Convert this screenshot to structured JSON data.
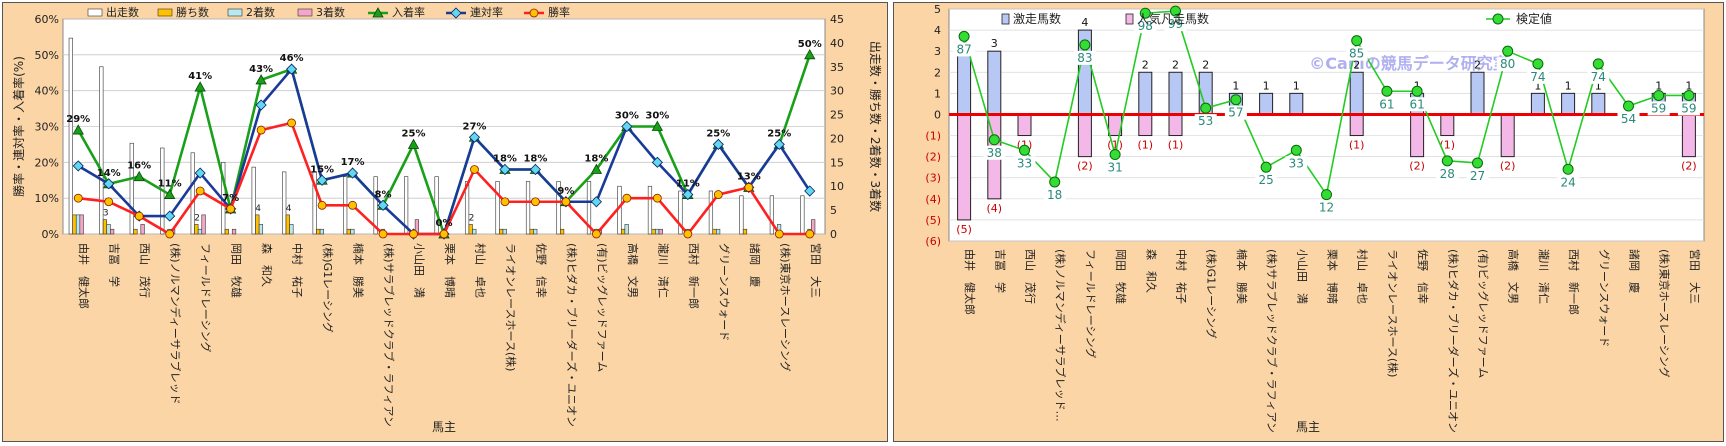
{
  "chart_data": [
    {
      "type": "bar",
      "xlabel": "馬主",
      "ylabel": "勝率・連対率・入着率(%)",
      "y2label": "出走数・勝ち数・2着数・3着数",
      "ylim": [
        0,
        60
      ],
      "yticks": [
        "0%",
        "10%",
        "20%",
        "30%",
        "40%",
        "50%",
        "60%"
      ],
      "y2lim": [
        0,
        45
      ],
      "y2ticks": [
        "0",
        "5",
        "10",
        "15",
        "20",
        "25",
        "30",
        "35",
        "40",
        "45"
      ],
      "legend_position": "top",
      "categories": [
        "由井　健太郎",
        "吉冨　学",
        "西山　茂行",
        "(株)ノルマンディーサラブレッド",
        "フィールドレーシング",
        "岡田　牧雄",
        "森　和久",
        "中村　祐子",
        "(株)G1レーシング",
        "楠本　勝美",
        "(株)サラブレッドクラブ・ラフィアン",
        "小山田　満",
        "栗本　博晴",
        "村山　卓也",
        "ライオンレースホース(株)",
        "佐野　信幸",
        "(株)ヒダカ・ブリーダーズ・ユニオン",
        "(有)ビッグレッドファーム",
        "高橋　文男",
        "瀧川　清仁",
        "西村　新一郎",
        "グリーンスウォード",
        "諸岡　慶",
        "(株)東京ホースレーシング",
        "宮田　大三"
      ],
      "bar_series": [
        {
          "name": "出走数",
          "color": "#ffffff",
          "values": [
            41,
            35,
            19,
            18,
            17,
            15,
            14,
            13,
            13,
            12,
            12,
            12,
            12,
            11,
            11,
            11,
            11,
            11,
            10,
            10,
            9,
            9,
            8,
            8,
            8
          ]
        },
        {
          "name": "勝ち数",
          "color": "#ffc000",
          "values": [
            4,
            3,
            1,
            0,
            2,
            1,
            4,
            4,
            1,
            1,
            0,
            0,
            0,
            2,
            1,
            1,
            1,
            0,
            1,
            1,
            0,
            1,
            1,
            0,
            0
          ]
        },
        {
          "name": "2着数",
          "color": "#b8e8f0",
          "values": [
            4,
            2,
            0,
            1,
            1,
            0,
            2,
            2,
            1,
            1,
            1,
            0,
            0,
            1,
            1,
            1,
            0,
            1,
            2,
            1,
            1,
            1,
            0,
            2,
            1
          ]
        },
        {
          "name": "3着数",
          "color": "#f4a6c8",
          "values": [
            4,
            1,
            2,
            1,
            4,
            1,
            0,
            0,
            0,
            0,
            0,
            3,
            0,
            0,
            0,
            0,
            0,
            1,
            0,
            1,
            0,
            0,
            0,
            0,
            3
          ]
        }
      ],
      "line_series": [
        {
          "name": "入着率",
          "color": "#18a018",
          "marker": "triangle",
          "values": [
            29,
            14,
            16,
            11,
            41,
            7,
            43,
            46,
            15,
            17,
            8,
            25,
            0,
            27,
            18,
            18,
            9,
            18,
            30,
            30,
            11,
            25,
            13,
            25,
            50
          ]
        },
        {
          "name": "連対率",
          "color": "#1a3a9a",
          "marker": "diamond",
          "values": [
            19,
            14,
            5,
            5,
            17,
            7,
            36,
            46,
            15,
            17,
            8,
            0,
            0,
            27,
            18,
            18,
            9,
            9,
            30,
            20,
            11,
            25,
            13,
            25,
            12
          ]
        },
        {
          "name": "勝率",
          "color": "#ff2020",
          "marker": "circle",
          "values": [
            10,
            9,
            5,
            0,
            12,
            7,
            29,
            31,
            8,
            8,
            0,
            0,
            0,
            18,
            9,
            9,
            9,
            0,
            10,
            10,
            0,
            11,
            13,
            0,
            0
          ]
        }
      ],
      "data_labels": [
        {
          "index": 0,
          "value": "29%"
        },
        {
          "index": 1,
          "value": "14%"
        },
        {
          "index": 2,
          "value": "16%"
        },
        {
          "index": 3,
          "value": "11%"
        },
        {
          "index": 4,
          "value": "41%"
        },
        {
          "index": 5,
          "value": "7%"
        },
        {
          "index": 6,
          "value": "43%"
        },
        {
          "index": 7,
          "value": "46%"
        },
        {
          "index": 8,
          "value": "15%"
        },
        {
          "index": 9,
          "value": "17%"
        },
        {
          "index": 10,
          "value": "8%"
        },
        {
          "index": 11,
          "value": "25%"
        },
        {
          "index": 12,
          "value": "0%"
        },
        {
          "index": 13,
          "value": "27%"
        },
        {
          "index": 14,
          "value": "18%"
        },
        {
          "index": 15,
          "value": "18%"
        },
        {
          "index": 16,
          "value": "9%"
        },
        {
          "index": 17,
          "value": "18%"
        },
        {
          "index": 18,
          "value": "30%"
        },
        {
          "index": 19,
          "value": "30%"
        },
        {
          "index": 20,
          "value": "11%"
        },
        {
          "index": 21,
          "value": "25%"
        },
        {
          "index": 22,
          "value": "13%"
        },
        {
          "index": 23,
          "value": "25%"
        },
        {
          "index": 24,
          "value": "50%"
        }
      ],
      "bar_value_labels": [
        {
          "index": 1,
          "value": "3"
        },
        {
          "index": 4,
          "value": "2"
        },
        {
          "index": 6,
          "value": "4"
        },
        {
          "index": 7,
          "value": "4"
        },
        {
          "index": 13,
          "value": "2"
        }
      ]
    },
    {
      "type": "bar",
      "xlabel": "馬主",
      "ylim": [
        -6,
        5
      ],
      "yticks_pos": [
        "0",
        "1",
        "2",
        "3",
        "4",
        "5"
      ],
      "yticks_neg": [
        "(1)",
        "(2)",
        "(3)",
        "(4)",
        "(5)",
        "(6)"
      ],
      "legend_position": "top",
      "watermark": "©Caniの競馬データ研究室",
      "categories": [
        "由井　健太郎",
        "吉冨　学",
        "西山　茂行",
        "(株)ノルマンディーサラブレッド…",
        "フィールドレーシング",
        "岡田　牧雄",
        "森　和久",
        "中村　祐子",
        "(株)G1レーシング",
        "楠本　勝美",
        "(株)サラブレッドクラブ・ラフィアン",
        "小山田　満",
        "栗本　博晴",
        "村山　卓也",
        "ライオンレースホース(株)",
        "佐野　信幸",
        "(株)ヒダカ・ブリーダーズ・ユニオン",
        "(有)ビッグレッドファーム",
        "高橋　文男",
        "瀧川　清仁",
        "西村　新一郎",
        "グリーンスウォード",
        "諸岡　慶",
        "(株)東京ホースレーシング",
        "宮田　大三"
      ],
      "popular_series": {
        "name": "人気凡走馬数",
        "color": "#f4b8e8",
        "values": [
          5,
          4,
          1,
          0,
          2,
          1,
          1,
          1,
          0,
          0,
          0,
          0,
          0,
          1,
          0,
          2,
          1,
          0,
          2,
          0,
          0,
          0,
          0,
          0,
          2
        ]
      },
      "upset_series": {
        "name": "激走馬数",
        "color": "#b8c8f4",
        "values": [
          3,
          3,
          0,
          0,
          4,
          0,
          2,
          2,
          2,
          1,
          1,
          1,
          0,
          2,
          0,
          1,
          0,
          2,
          0,
          1,
          1,
          1,
          0,
          1,
          1
        ]
      },
      "popular_labels": [
        "(5)",
        "(4)",
        "(1)",
        "",
        "(2)",
        "(1)",
        "(1)",
        "(1)",
        "",
        "",
        "",
        "",
        "",
        "(1)",
        "",
        "(2)",
        "(1)",
        "",
        "(2)",
        "",
        "",
        "",
        "",
        "",
        "(2)"
      ],
      "upset_labels": [
        "3",
        "3",
        "",
        "",
        "4",
        "",
        "2",
        "2",
        "2",
        "1",
        "1",
        "1",
        "",
        "2",
        "",
        "1",
        "",
        "2",
        "",
        "1",
        "1",
        "1",
        "",
        "1",
        "1"
      ],
      "test_series": {
        "name": "検定値",
        "color": "#22cc22",
        "values": [
          87,
          38,
          33,
          18,
          83,
          31,
          98,
          99,
          53,
          57,
          25,
          33,
          12,
          85,
          61,
          61,
          28,
          27,
          80,
          74,
          24,
          74,
          54,
          59,
          59
        ]
      },
      "test_labels": [
        "87",
        "38",
        "33",
        "18",
        "83",
        "31",
        "98",
        "99",
        "53",
        "57",
        "25",
        "33",
        "12",
        "85",
        "61",
        "61",
        "28",
        "27",
        "80",
        "74",
        "24",
        "74",
        "54",
        "59",
        "59"
      ]
    }
  ]
}
